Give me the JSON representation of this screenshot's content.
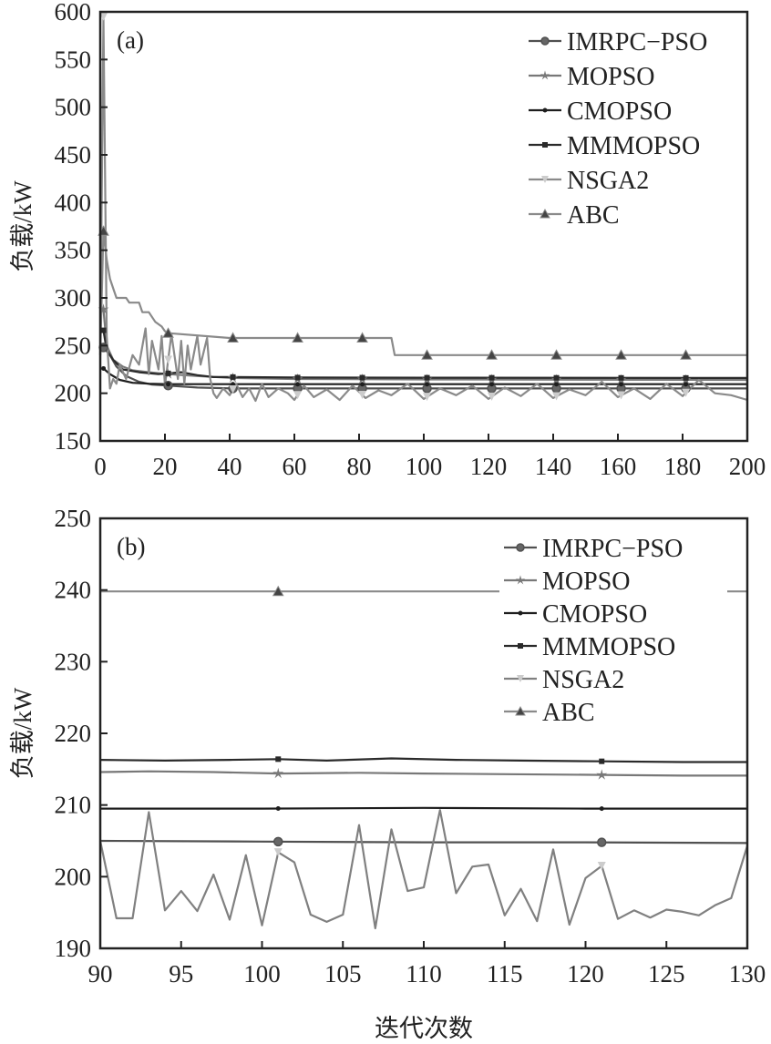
{
  "chart_data": [
    {
      "type": "line",
      "panel_label": "(a)",
      "xlabel": "",
      "ylabel": "负载/kW",
      "xlim": [
        0,
        200
      ],
      "ylim": [
        150,
        600
      ],
      "xticks": [
        "0",
        "20",
        "40",
        "60",
        "80",
        "100",
        "120",
        "140",
        "160",
        "180",
        "200"
      ],
      "yticks": [
        "150",
        "200",
        "250",
        "300",
        "350",
        "400",
        "450",
        "500",
        "550",
        "600"
      ],
      "legend_position": "top-right",
      "marker_x": [
        1,
        21,
        41,
        61,
        81,
        101,
        121,
        141,
        161,
        181
      ],
      "series": [
        {
          "name": "IMRPC−PSO",
          "marker": "circle",
          "color": "#505050",
          "x": [
            1,
            3,
            5,
            8,
            12,
            16,
            21,
            30,
            41,
            60,
            100,
            200
          ],
          "y": [
            248,
            240,
            228,
            218,
            212,
            209,
            208,
            206,
            205,
            205,
            205,
            205
          ]
        },
        {
          "name": "MOPSO",
          "marker": "star",
          "color": "#787878",
          "x": [
            1,
            2,
            4,
            7,
            10,
            15,
            21,
            30,
            41,
            60,
            100,
            200
          ],
          "y": [
            288,
            250,
            235,
            228,
            224,
            222,
            220,
            218,
            216,
            215,
            214.5,
            214
          ]
        },
        {
          "name": "CMOPSO",
          "marker": "diamond",
          "color": "#1e1e1e",
          "x": [
            1,
            3,
            6,
            10,
            15,
            21,
            30,
            41,
            60,
            100,
            200
          ],
          "y": [
            226,
            220,
            214,
            211,
            210,
            209.5,
            209.5,
            209.5,
            209.5,
            209.5,
            209.5
          ]
        },
        {
          "name": "MMMOPSO",
          "marker": "square",
          "color": "#2a2a2a",
          "x": [
            1,
            2,
            4,
            7,
            12,
            18,
            25,
            30,
            35,
            41,
            60,
            100,
            200
          ],
          "y": [
            266,
            245,
            235,
            225,
            222,
            220,
            222,
            219,
            217,
            217,
            216.5,
            216.3,
            216
          ]
        },
        {
          "name": "NSGA2",
          "marker": "triangle-down",
          "color": "#8a8a8a",
          "x": [
            0,
            1,
            2,
            3,
            4,
            5,
            6,
            8,
            10,
            12,
            14,
            15,
            16,
            18,
            19,
            20,
            22,
            24,
            25,
            26,
            27,
            28,
            30,
            31,
            33,
            34,
            35,
            36,
            38,
            40,
            42,
            44,
            46,
            48,
            50,
            52,
            55,
            58,
            60,
            63,
            66,
            70,
            74,
            78,
            82,
            86,
            90,
            95,
            100,
            105,
            110,
            115,
            120,
            125,
            130,
            135,
            140,
            145,
            150,
            155,
            160,
            165,
            170,
            175,
            180,
            185,
            190,
            195,
            200
          ],
          "y": [
            240,
            595,
            260,
            205,
            215,
            210,
            230,
            215,
            240,
            230,
            268,
            220,
            255,
            225,
            260,
            208,
            262,
            215,
            255,
            210,
            250,
            225,
            260,
            230,
            258,
            215,
            200,
            195,
            205,
            198,
            210,
            196,
            205,
            192,
            210,
            196,
            205,
            200,
            193,
            208,
            196,
            204,
            193,
            208,
            195,
            203,
            198,
            210,
            194,
            205,
            198,
            208,
            194,
            206,
            197,
            210,
            195,
            204,
            198,
            212,
            196,
            205,
            194,
            210,
            197,
            214,
            200,
            198,
            193
          ]
        },
        {
          "name": "ABC",
          "marker": "triangle",
          "color": "#8a8a8a",
          "x": [
            0,
            1,
            2,
            3,
            4,
            5,
            8,
            9,
            12,
            13,
            15,
            17,
            19,
            20,
            21,
            40,
            60,
            80,
            90,
            91,
            100,
            120,
            140,
            160,
            180,
            200
          ],
          "y": [
            240,
            370,
            340,
            320,
            310,
            300,
            300,
            295,
            295,
            285,
            285,
            275,
            270,
            265,
            263,
            258,
            258,
            258,
            258,
            240,
            240,
            240,
            240,
            240,
            240,
            240
          ]
        }
      ]
    },
    {
      "type": "line",
      "panel_label": "(b)",
      "xlabel": "迭代次数",
      "ylabel": "负载/kW",
      "xlim": [
        90,
        130
      ],
      "ylim": [
        190,
        250
      ],
      "xticks": [
        "90",
        "95",
        "100",
        "105",
        "110",
        "115",
        "120",
        "125",
        "130"
      ],
      "yticks": [
        "190",
        "200",
        "210",
        "220",
        "230",
        "240",
        "250"
      ],
      "legend_position": "top-right",
      "marker_x": [
        101,
        121
      ],
      "series": [
        {
          "name": "IMRPC−PSO",
          "marker": "circle",
          "color": "#505050",
          "x": [
            90,
            100,
            110,
            120,
            130
          ],
          "y": [
            205,
            204.9,
            204.8,
            204.8,
            204.7
          ]
        },
        {
          "name": "MOPSO",
          "marker": "star",
          "color": "#787878",
          "x": [
            90,
            93,
            97,
            101,
            106,
            110,
            115,
            121,
            126,
            130
          ],
          "y": [
            214.6,
            214.7,
            214.6,
            214.4,
            214.5,
            214.4,
            214.3,
            214.2,
            214.1,
            214.1
          ]
        },
        {
          "name": "CMOPSO",
          "marker": "diamond",
          "color": "#1e1e1e",
          "x": [
            90,
            100,
            110,
            120,
            130
          ],
          "y": [
            209.5,
            209.5,
            209.6,
            209.5,
            209.5
          ]
        },
        {
          "name": "MMMOPSO",
          "marker": "square",
          "color": "#2a2a2a",
          "x": [
            90,
            94,
            98,
            101,
            104,
            108,
            112,
            116,
            121,
            126,
            130
          ],
          "y": [
            216.3,
            216.2,
            216.3,
            216.4,
            216.2,
            216.5,
            216.3,
            216.2,
            216.1,
            216,
            216
          ]
        },
        {
          "name": "NSGA2",
          "marker": "triangle-down",
          "color": "#808080",
          "x": [
            90,
            91,
            92,
            93,
            94,
            95,
            96,
            97,
            98,
            99,
            100,
            101,
            102,
            103,
            104,
            105,
            106,
            107,
            108,
            109,
            110,
            111,
            112,
            113,
            114,
            115,
            116,
            117,
            118,
            119,
            120,
            121,
            122,
            123,
            124,
            125,
            126,
            127,
            128,
            129,
            130
          ],
          "y": [
            205,
            194.2,
            194.2,
            209,
            195.3,
            198,
            195.2,
            200.3,
            194,
            203,
            193.2,
            203.4,
            202,
            194.7,
            193.7,
            194.7,
            207.2,
            192.8,
            206.6,
            198,
            198.5,
            209.3,
            197.7,
            201.4,
            201.7,
            194.6,
            198.3,
            193.8,
            203.8,
            193.3,
            199.8,
            201.5,
            194.1,
            195.3,
            194.3,
            195.4,
            195.1,
            194.6,
            196,
            197,
            204.3
          ]
        },
        {
          "name": "ABC",
          "marker": "triangle",
          "color": "#8a8a8a",
          "x": [
            90,
            130
          ],
          "y": [
            239.8,
            239.8
          ]
        }
      ]
    }
  ]
}
